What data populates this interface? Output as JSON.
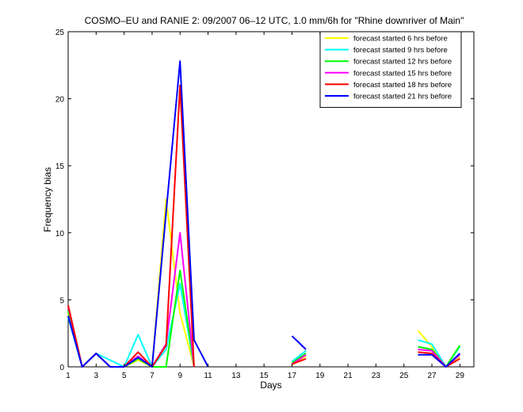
{
  "chart_data": {
    "type": "line",
    "title": "COSMO–EU and RANIE 2: 09/2007 06–12 UTC, 1.0 mm/6h for \"Rhine downriver of Main\"",
    "xlabel": "Days",
    "ylabel": "Frequency bias",
    "xlim": [
      1,
      30
    ],
    "ylim": [
      0,
      25
    ],
    "xticks": [
      "1",
      "3",
      "5",
      "7",
      "9",
      "11",
      "13",
      "15",
      "17",
      "19",
      "21",
      "23",
      "25",
      "27",
      "29"
    ],
    "yticks": [
      "0",
      "5",
      "10",
      "15",
      "20",
      "25"
    ],
    "grid": false,
    "legend_position": "top-right",
    "x": [
      1,
      2,
      3,
      4,
      5,
      6,
      7,
      8,
      9,
      10,
      11,
      12,
      13,
      14,
      15,
      16,
      17,
      18,
      19,
      20,
      21,
      22,
      23,
      24,
      25,
      26,
      27,
      28,
      29,
      30
    ],
    "series": [
      {
        "name": "forecast started 6 hrs before",
        "color": "#ffff00",
        "values": [
          4.0,
          0.0,
          1.0,
          0.0,
          0.0,
          0.5,
          0.0,
          12.5,
          4.0,
          0.0,
          null,
          null,
          null,
          null,
          null,
          null,
          0.2,
          0.8,
          null,
          null,
          null,
          null,
          null,
          null,
          null,
          2.7,
          1.5,
          0.0,
          0.7,
          null
        ]
      },
      {
        "name": "forecast started 9 hrs before",
        "color": "#00ffff",
        "values": [
          3.7,
          0.0,
          1.0,
          0.5,
          0.0,
          2.4,
          0.0,
          1.3,
          6.2,
          0.0,
          null,
          null,
          null,
          null,
          null,
          null,
          0.4,
          1.2,
          null,
          null,
          null,
          null,
          null,
          null,
          null,
          2.0,
          1.7,
          0.0,
          1.5,
          null
        ]
      },
      {
        "name": "forecast started 12 hrs before",
        "color": "#00ff00",
        "values": [
          4.2,
          0.0,
          1.0,
          0.0,
          0.0,
          0.6,
          0.0,
          0.0,
          7.2,
          0.0,
          null,
          null,
          null,
          null,
          null,
          null,
          0.3,
          1.0,
          null,
          null,
          null,
          null,
          null,
          null,
          null,
          1.5,
          1.3,
          0.0,
          1.6,
          null
        ]
      },
      {
        "name": "forecast started 15 hrs before",
        "color": "#ff00ff",
        "values": [
          4.5,
          0.0,
          1.0,
          0.0,
          0.0,
          0.8,
          0.0,
          1.7,
          10.0,
          0.0,
          null,
          null,
          null,
          null,
          null,
          null,
          0.2,
          0.9,
          null,
          null,
          null,
          null,
          null,
          null,
          null,
          1.3,
          1.2,
          0.0,
          0.9,
          null
        ]
      },
      {
        "name": "forecast started 18 hrs before",
        "color": "#ff0000",
        "values": [
          4.6,
          0.0,
          1.0,
          0.0,
          0.0,
          1.1,
          0.0,
          1.6,
          21.0,
          0.0,
          null,
          null,
          null,
          null,
          null,
          null,
          0.2,
          0.6,
          null,
          null,
          null,
          null,
          null,
          null,
          null,
          1.1,
          1.0,
          0.0,
          0.6,
          null
        ]
      },
      {
        "name": "forecast started 21 hrs before",
        "color": "#0000ff",
        "values": [
          3.8,
          0.0,
          1.0,
          0.0,
          0.0,
          0.7,
          0.0,
          11.5,
          22.8,
          2.0,
          0.0,
          null,
          null,
          null,
          null,
          null,
          2.3,
          1.3,
          null,
          null,
          null,
          null,
          null,
          null,
          null,
          0.9,
          0.9,
          0.0,
          1.0,
          null
        ]
      }
    ]
  }
}
